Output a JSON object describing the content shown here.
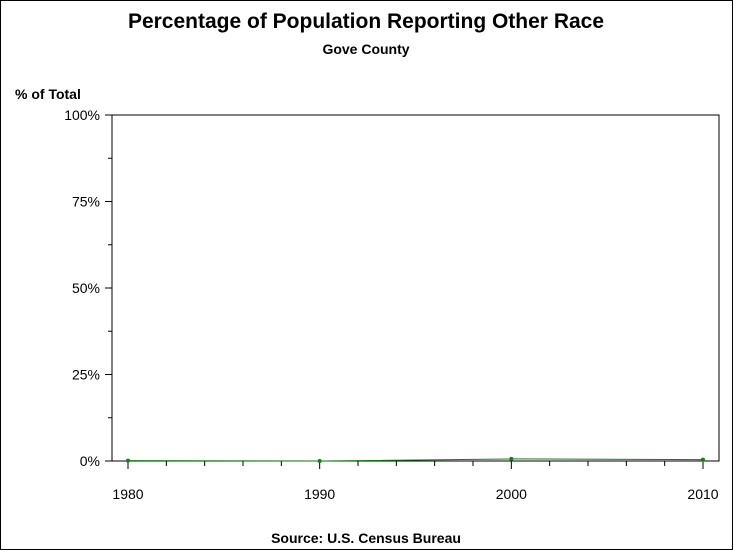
{
  "chart_data": {
    "type": "line",
    "title": "Percentage of Population Reporting Other Race",
    "subtitle": "Gove County",
    "ylabel": "% of Total",
    "xlabel": "",
    "source": "Source: U.S. Census Bureau",
    "x": [
      1980,
      1990,
      2000,
      2010
    ],
    "xticks": [
      1980,
      1990,
      2000,
      2010
    ],
    "xlim": [
      1980,
      2010
    ],
    "ylim": [
      0,
      100
    ],
    "yticks": [
      0,
      25,
      50,
      75,
      100
    ],
    "yticklabels": [
      "0%",
      "25%",
      "50%",
      "75%",
      "100%"
    ],
    "grid": false,
    "series": [
      {
        "values": [
          0.1,
          0.0,
          0.6,
          0.4
        ],
        "color": "#1a7a1a"
      }
    ]
  }
}
